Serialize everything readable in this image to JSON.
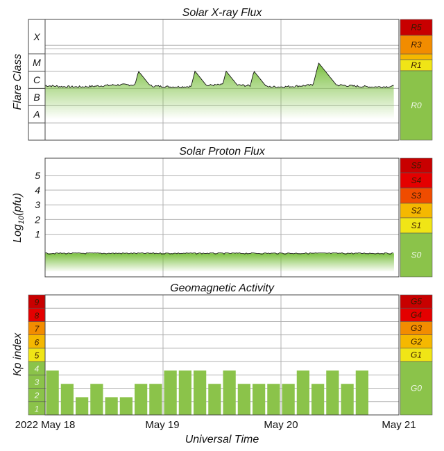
{
  "colors": {
    "green": "#8bc34a",
    "green_light": "#aed581",
    "yellow": "#f0e516",
    "orange_light": "#f5b800",
    "orange": "#f28c00",
    "red_orange": "#ef4c00",
    "red": "#e40000",
    "dark_red": "#c80000",
    "grid": "#b0b0b0",
    "frame": "#444444"
  },
  "chart_data": [
    {
      "type": "area",
      "title": "Solar X-ray Flux",
      "ylabel": "Flare Class",
      "y_scale": "log",
      "ylim": [
        "1e-9",
        "1e-2"
      ],
      "y_tick_labels": [
        "A",
        "B",
        "C",
        "M",
        "X"
      ],
      "x_start": "2022-05-18T00:00Z",
      "x_end": "2022-05-21T00:00Z",
      "series_summary": {
        "baseline_class": "C",
        "notable_peaks": [
          {
            "time": "2022-05-18T19:00Z",
            "class": "M1"
          },
          {
            "time": "2022-05-19T06:30Z",
            "class": "M1"
          },
          {
            "time": "2022-05-19T12:50Z",
            "class": "M1"
          },
          {
            "time": "2022-05-19T18:30Z",
            "class": "M1"
          },
          {
            "time": "2022-05-20T07:40Z",
            "class": "M3"
          }
        ]
      },
      "scale_labels": [
        "R5",
        "R3",
        "R1",
        "R0"
      ]
    },
    {
      "type": "area",
      "title": "Solar Proton Flux",
      "ylabel": "Log10(pfu)",
      "ylabel_base": "Log",
      "ylabel_sub": "10",
      "ylabel_tail": "(pfu)",
      "y_tick_labels": [
        "1",
        "2",
        "3",
        "4",
        "5"
      ],
      "x_start": "2022-05-18T00:00Z",
      "x_end": "2022-05-21T00:00Z",
      "series_summary": {
        "level_log10_pfu": -0.3
      },
      "scale_labels": [
        "S5",
        "S4",
        "S3",
        "S2",
        "S1",
        "S0"
      ]
    },
    {
      "type": "bar",
      "title": "Geomagnetic Activity",
      "ylabel": "Kp index",
      "ylim": [
        0,
        9
      ],
      "y_tick_labels": [
        "1",
        "2",
        "3",
        "4",
        "5",
        "6",
        "7",
        "8",
        "9"
      ],
      "interval_hours": 3,
      "x_start": "2022-05-18T00:00Z",
      "x_end": "2022-05-21T00:00Z",
      "kp_values": [
        3.33,
        2.33,
        1.33,
        2.33,
        1.33,
        1.33,
        2.33,
        2.33,
        3.33,
        3.33,
        3.33,
        2.33,
        3.33,
        2.33,
        2.33,
        2.33,
        2.33,
        3.33,
        2.33,
        3.33,
        2.33,
        3.33
      ],
      "scale_labels": [
        "G5",
        "G4",
        "G3",
        "G2",
        "G1",
        "G0"
      ]
    }
  ],
  "x_axis": {
    "tick_labels": [
      "2022 May 18",
      "May 19",
      "May 20",
      "May 21"
    ],
    "label": "Universal Time"
  }
}
